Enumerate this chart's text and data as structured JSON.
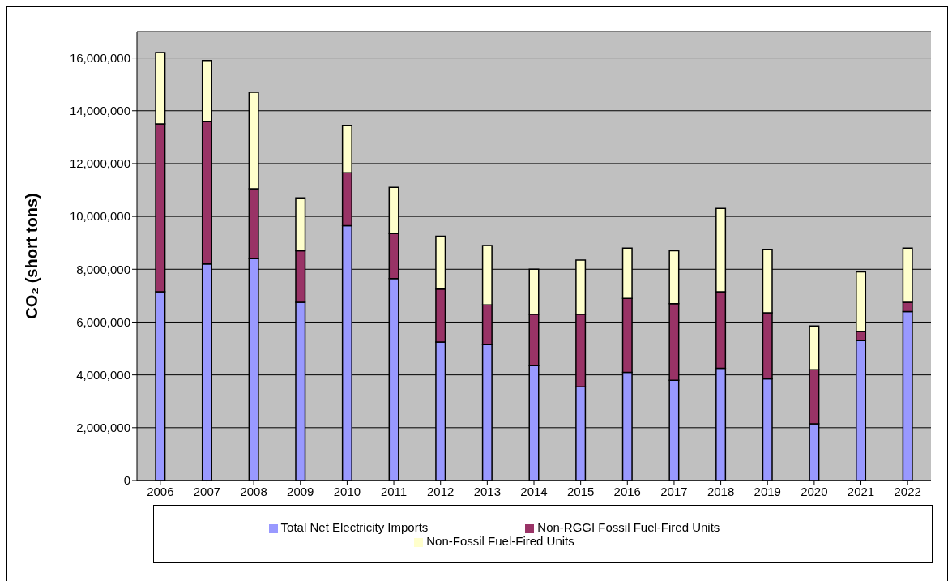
{
  "chart_data": {
    "type": "bar",
    "stacked": true,
    "ylabel": "CO₂ (short tons)",
    "categories": [
      "2006",
      "2007",
      "2008",
      "2009",
      "2010",
      "2011",
      "2012",
      "2013",
      "2014",
      "2015",
      "2016",
      "2017",
      "2018",
      "2019",
      "2020",
      "2021",
      "2022"
    ],
    "series": [
      {
        "name": "Total Net Electricity Imports",
        "color": "#9999ff",
        "values": [
          7150000,
          8200000,
          8400000,
          6750000,
          9650000,
          7650000,
          5250000,
          5150000,
          4350000,
          3550000,
          4100000,
          3800000,
          4250000,
          3850000,
          2150000,
          5300000,
          6400000
        ]
      },
      {
        "name": "Non-RGGI Fossil Fuel-Fired Units",
        "color": "#993366",
        "values": [
          6350000,
          5400000,
          2650000,
          1950000,
          2000000,
          1700000,
          2000000,
          1500000,
          1950000,
          2750000,
          2800000,
          2900000,
          2900000,
          2500000,
          2050000,
          350000,
          350000
        ]
      },
      {
        "name": "Non-Fossil Fuel-Fired Units",
        "color": "#ffffcc",
        "values": [
          2700000,
          2300000,
          3650000,
          2000000,
          1800000,
          1750000,
          2000000,
          2250000,
          1700000,
          2050000,
          1900000,
          2000000,
          3150000,
          2400000,
          1650000,
          2250000,
          2050000
        ]
      }
    ],
    "ylim": [
      0,
      17000000
    ],
    "yticks": [
      0,
      {
        "value": 2000000,
        "label": "2,000,000"
      },
      {
        "value": 4000000,
        "label": "4,000,000"
      },
      {
        "value": 6000000,
        "label": "6,000,000"
      },
      {
        "value": 8000000,
        "label": "8,000,000"
      },
      {
        "value": 10000000,
        "label": "10,000,000"
      },
      {
        "value": 12000000,
        "label": "12,000,000"
      },
      {
        "value": 14000000,
        "label": "14,000,000"
      },
      {
        "value": 16000000,
        "label": "16,000,000"
      }
    ],
    "grid": "y",
    "legend": "bottom"
  }
}
